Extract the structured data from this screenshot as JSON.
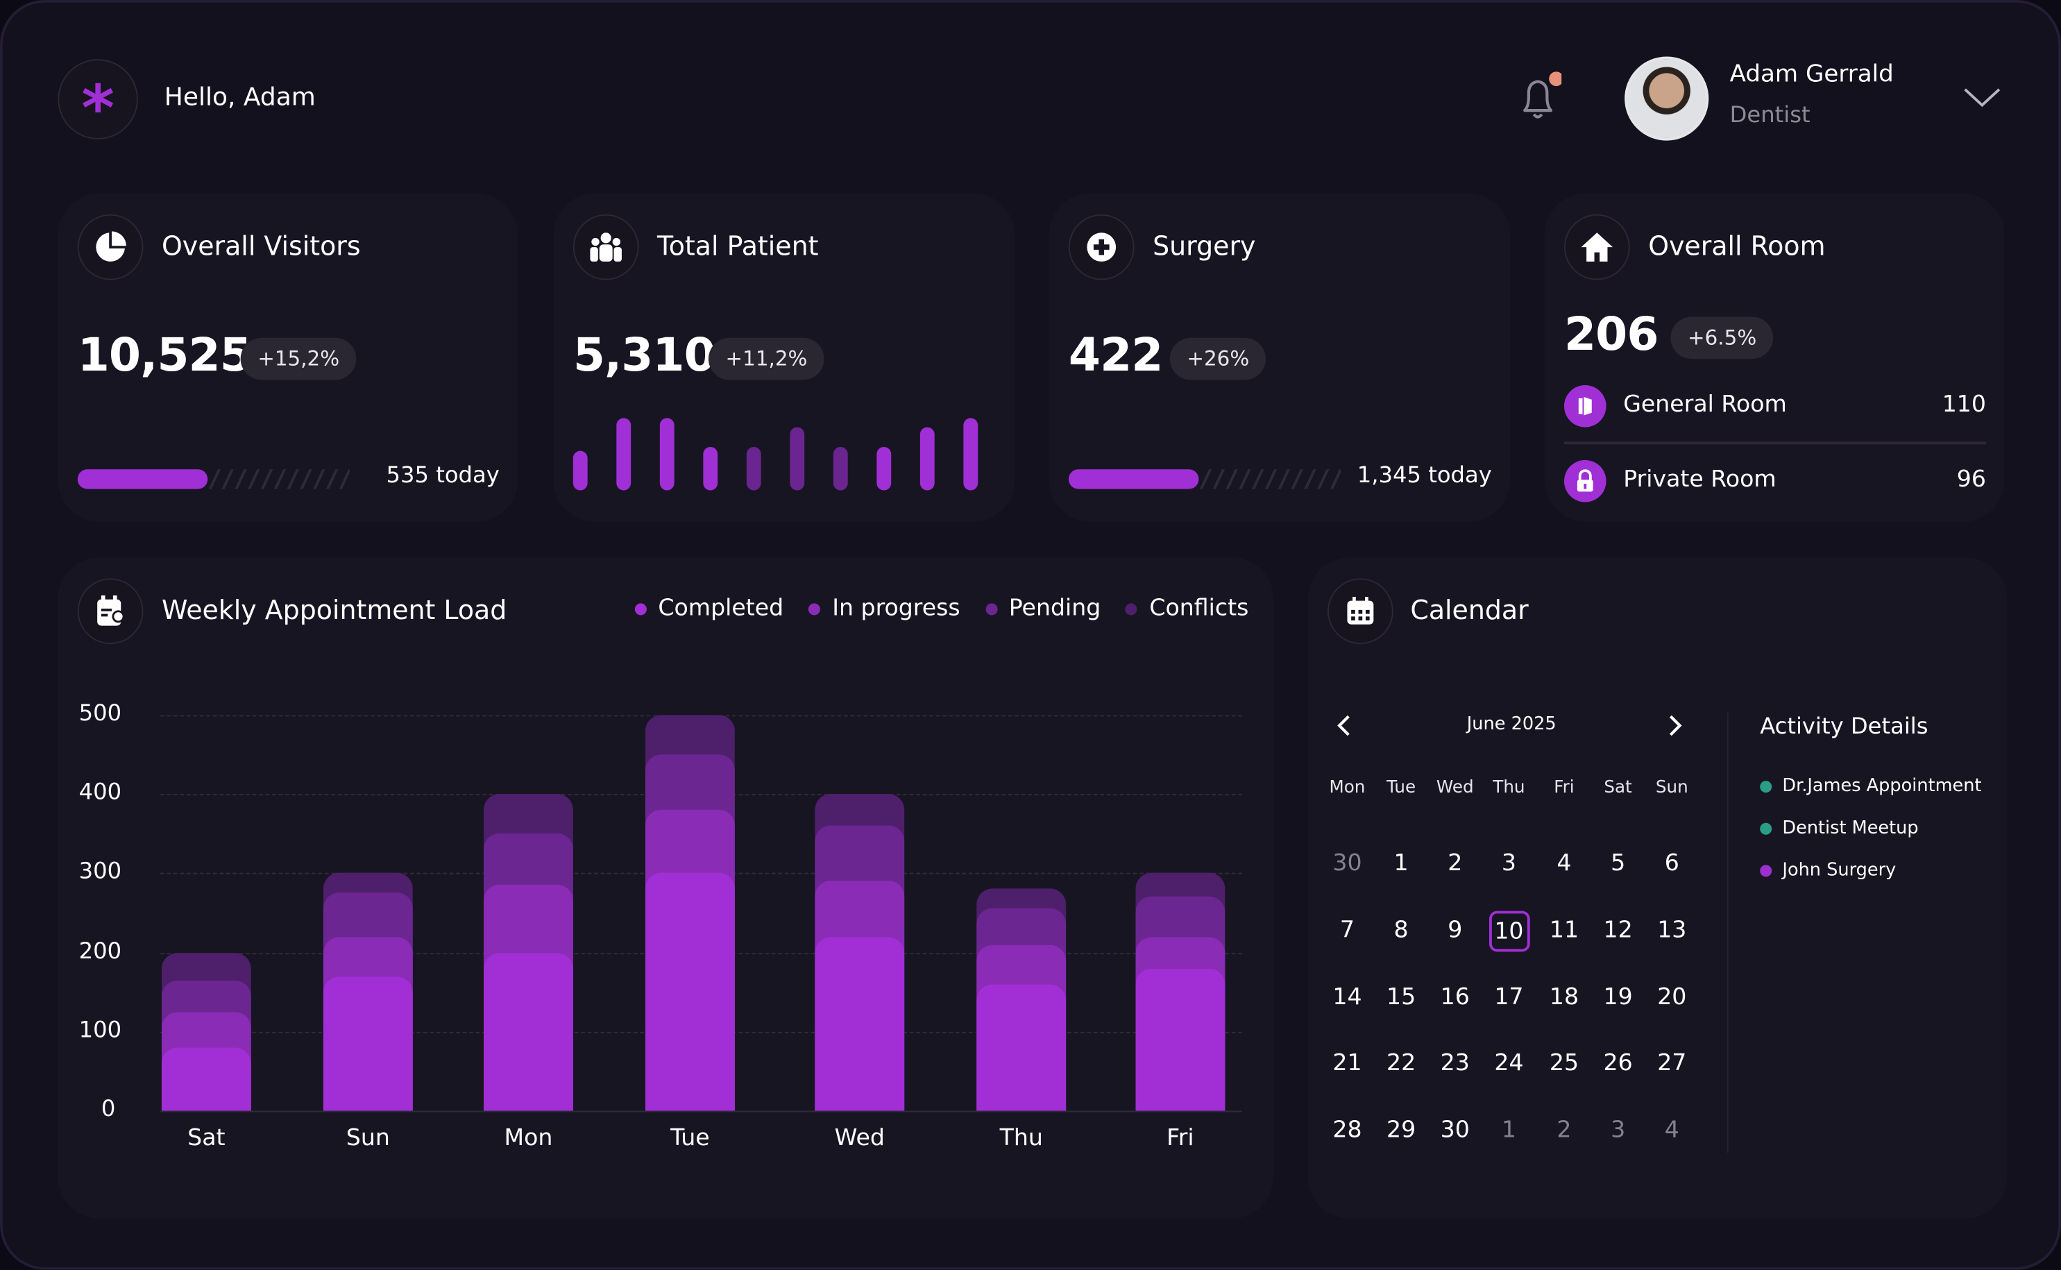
{
  "header": {
    "greeting": "Hello, Adam",
    "user_name": "Adam Gerrald",
    "user_role": "Dentist",
    "notification_dot_color": "#e8917a",
    "logo_icon": "asterisk-icon"
  },
  "stats": {
    "visitors": {
      "title": "Overall Visitors",
      "value": "10,525",
      "change": "+15,2%",
      "today": "535 today",
      "progress_percent": 48
    },
    "patients": {
      "title": "Total Patient",
      "value": "5,310",
      "change": "+11,2%",
      "mini_bars": [
        0.55,
        1,
        1,
        0.6,
        0.6,
        0.88,
        0.6,
        0.6,
        0.88,
        1
      ]
    },
    "surgery": {
      "title": "Surgery",
      "value": "422",
      "change": "+26%",
      "today": "1,345 today",
      "progress_percent": 48
    },
    "rooms": {
      "title": "Overall Room",
      "value": "206",
      "change": "+6.5%",
      "items": [
        {
          "label": "General Room",
          "value": "110"
        },
        {
          "label": "Private Room",
          "value": "96"
        }
      ]
    }
  },
  "chart_data": {
    "type": "bar",
    "stacked": true,
    "title": "Weekly Appointment Load",
    "categories": [
      "Sat",
      "Sun",
      "Mon",
      "Tue",
      "Wed",
      "Thu",
      "Fri"
    ],
    "series": [
      {
        "name": "Completed",
        "color": "#a22fd6",
        "values": [
          80,
          170,
          200,
          300,
          220,
          160,
          180
        ]
      },
      {
        "name": "In progress",
        "color": "#8a2cb6",
        "values": [
          45,
          50,
          85,
          80,
          70,
          50,
          40
        ]
      },
      {
        "name": "Pending",
        "color": "#6c2692",
        "values": [
          40,
          55,
          65,
          70,
          70,
          45,
          50
        ]
      },
      {
        "name": "Conflicts",
        "color": "#4e1f6b",
        "values": [
          35,
          25,
          50,
          50,
          40,
          25,
          30
        ]
      }
    ],
    "yticks": [
      0,
      100,
      200,
      300,
      400,
      500
    ],
    "ylim": [
      0,
      500
    ],
    "grid": true,
    "legend": "top-right"
  },
  "calendar": {
    "title": "Calendar",
    "month": "June 2025",
    "weekdays": [
      "Mon",
      "Tue",
      "Wed",
      "Thu",
      "Fri",
      "Sat",
      "Sun"
    ],
    "days": [
      [
        "30",
        1
      ],
      [
        "1",
        0
      ],
      [
        "2",
        0
      ],
      [
        "3",
        0
      ],
      [
        "4",
        0
      ],
      [
        "5",
        0
      ],
      [
        "6",
        0
      ],
      [
        "7",
        0
      ],
      [
        "8",
        0
      ],
      [
        "9",
        0
      ],
      [
        "10",
        0
      ],
      [
        "11",
        0
      ],
      [
        "12",
        0
      ],
      [
        "13",
        0
      ],
      [
        "14",
        0
      ],
      [
        "15",
        0
      ],
      [
        "16",
        0
      ],
      [
        "17",
        0
      ],
      [
        "18",
        0
      ],
      [
        "19",
        0
      ],
      [
        "20",
        0
      ],
      [
        "21",
        0
      ],
      [
        "22",
        0
      ],
      [
        "23",
        0
      ],
      [
        "24",
        0
      ],
      [
        "25",
        0
      ],
      [
        "26",
        0
      ],
      [
        "27",
        0
      ],
      [
        "28",
        0
      ],
      [
        "29",
        0
      ],
      [
        "30",
        0
      ],
      [
        "1",
        1
      ],
      [
        "2",
        1
      ],
      [
        "3",
        1
      ],
      [
        "4",
        1
      ]
    ],
    "selected": "10",
    "activity_title": "Activity Details",
    "activities": [
      {
        "label": "Dr.James Appointment",
        "color": "#2a9d86"
      },
      {
        "label": "Dentist Meetup",
        "color": "#2a9d86"
      },
      {
        "label": "John Surgery",
        "color": "#9a30d0"
      }
    ]
  }
}
